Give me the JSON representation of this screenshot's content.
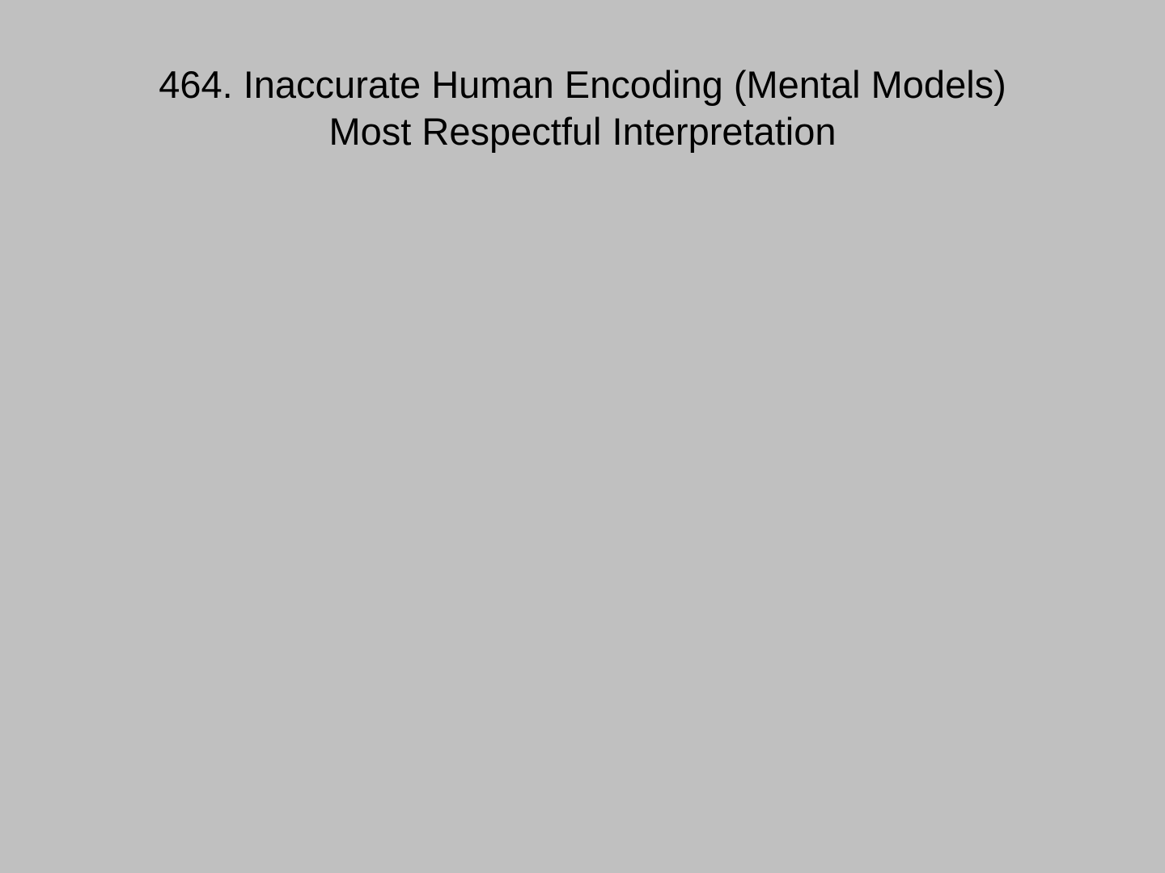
{
  "slide": {
    "background_color": "#c0c0c0",
    "text_color": "#000000",
    "title": {
      "line1": "464. Inaccurate Human Encoding (Mental Models)",
      "line2": "Most Respectful Interpretation"
    }
  }
}
